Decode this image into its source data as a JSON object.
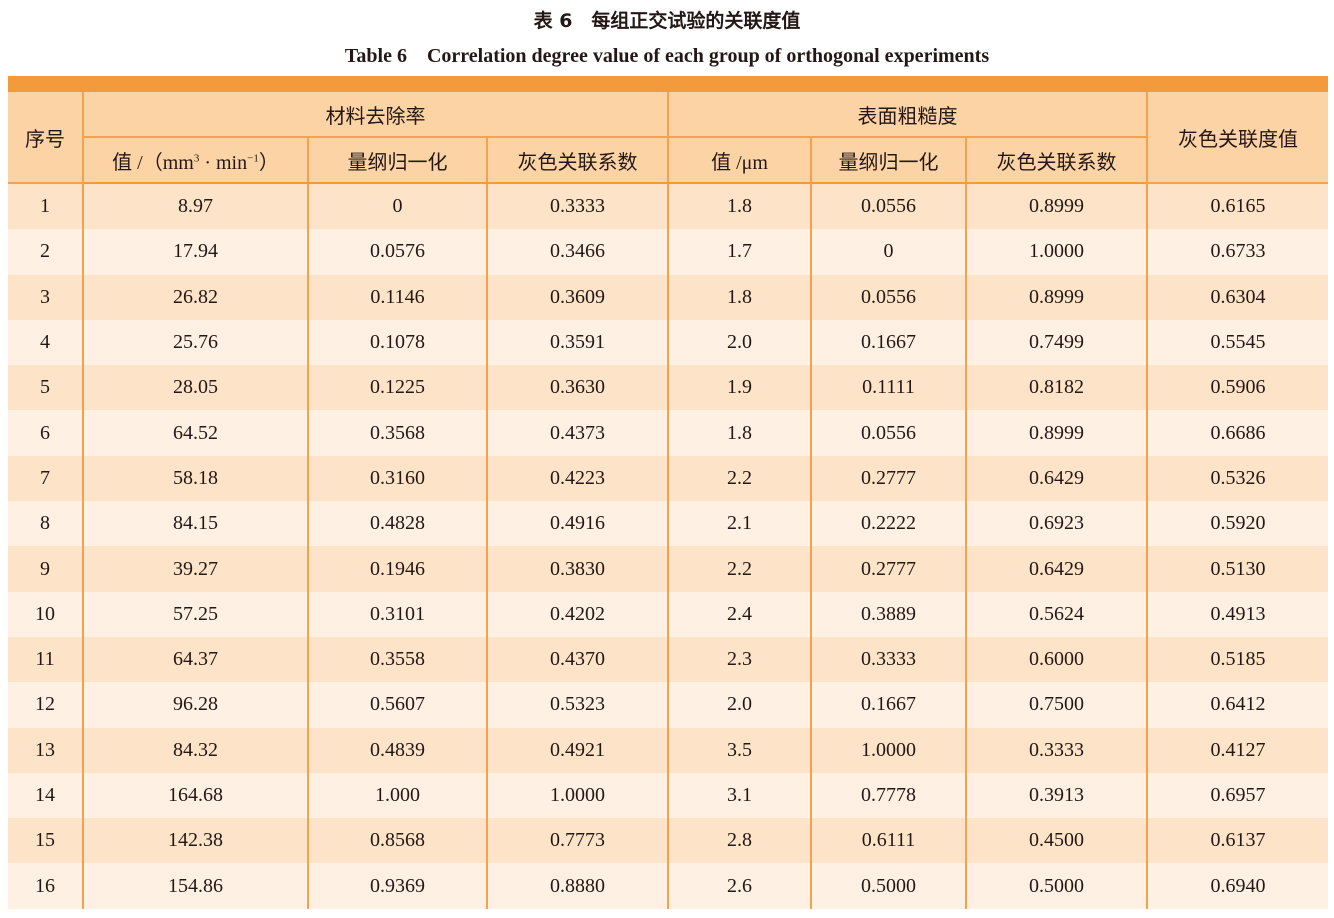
{
  "header": {
    "title_cn": "表 6　每组正交试验的关联度值",
    "title_en": "Table 6　Correlation degree value of each group of orthogonal experiments"
  },
  "table": {
    "group_headers": [
      "序号",
      "材料去除率",
      "表面粗糙度",
      "灰色关联度值"
    ],
    "mrr_value_header": [
      "值 /（mm",
      "3",
      " · min",
      "−1",
      "）"
    ],
    "mrr_norm_header": "量纲归一化",
    "mrr_coef_header": "灰色关联系数",
    "ra_value_header": "值 /μm",
    "ra_norm_header": "量纲归一化",
    "ra_coef_header": "灰色关联系数",
    "rows": [
      [
        "1",
        "8.97",
        "0",
        "0.3333",
        "1.8",
        "0.0556",
        "0.8999",
        "0.6165"
      ],
      [
        "2",
        "17.94",
        "0.0576",
        "0.3466",
        "1.7",
        "0",
        "1.0000",
        "0.6733"
      ],
      [
        "3",
        "26.82",
        "0.1146",
        "0.3609",
        "1.8",
        "0.0556",
        "0.8999",
        "0.6304"
      ],
      [
        "4",
        "25.76",
        "0.1078",
        "0.3591",
        "2.0",
        "0.1667",
        "0.7499",
        "0.5545"
      ],
      [
        "5",
        "28.05",
        "0.1225",
        "0.3630",
        "1.9",
        "0.1111",
        "0.8182",
        "0.5906"
      ],
      [
        "6",
        "64.52",
        "0.3568",
        "0.4373",
        "1.8",
        "0.0556",
        "0.8999",
        "0.6686"
      ],
      [
        "7",
        "58.18",
        "0.3160",
        "0.4223",
        "2.2",
        "0.2777",
        "0.6429",
        "0.5326"
      ],
      [
        "8",
        "84.15",
        "0.4828",
        "0.4916",
        "2.1",
        "0.2222",
        "0.6923",
        "0.5920"
      ],
      [
        "9",
        "39.27",
        "0.1946",
        "0.3830",
        "2.2",
        "0.2777",
        "0.6429",
        "0.5130"
      ],
      [
        "10",
        "57.25",
        "0.3101",
        "0.4202",
        "2.4",
        "0.3889",
        "0.5624",
        "0.4913"
      ],
      [
        "11",
        "64.37",
        "0.3558",
        "0.4370",
        "2.3",
        "0.3333",
        "0.6000",
        "0.5185"
      ],
      [
        "12",
        "96.28",
        "0.5607",
        "0.5323",
        "2.0",
        "0.1667",
        "0.7500",
        "0.6412"
      ],
      [
        "13",
        "84.32",
        "0.4839",
        "0.4921",
        "3.5",
        "1.0000",
        "0.3333",
        "0.4127"
      ],
      [
        "14",
        "164.68",
        "1.000",
        "1.0000",
        "3.1",
        "0.7778",
        "0.3913",
        "0.6957"
      ],
      [
        "15",
        "142.38",
        "0.8568",
        "0.7773",
        "2.8",
        "0.6111",
        "0.4500",
        "0.6137"
      ],
      [
        "16",
        "154.86",
        "0.9369",
        "0.8880",
        "2.6",
        "0.5000",
        "0.5000",
        "0.6940"
      ]
    ]
  }
}
